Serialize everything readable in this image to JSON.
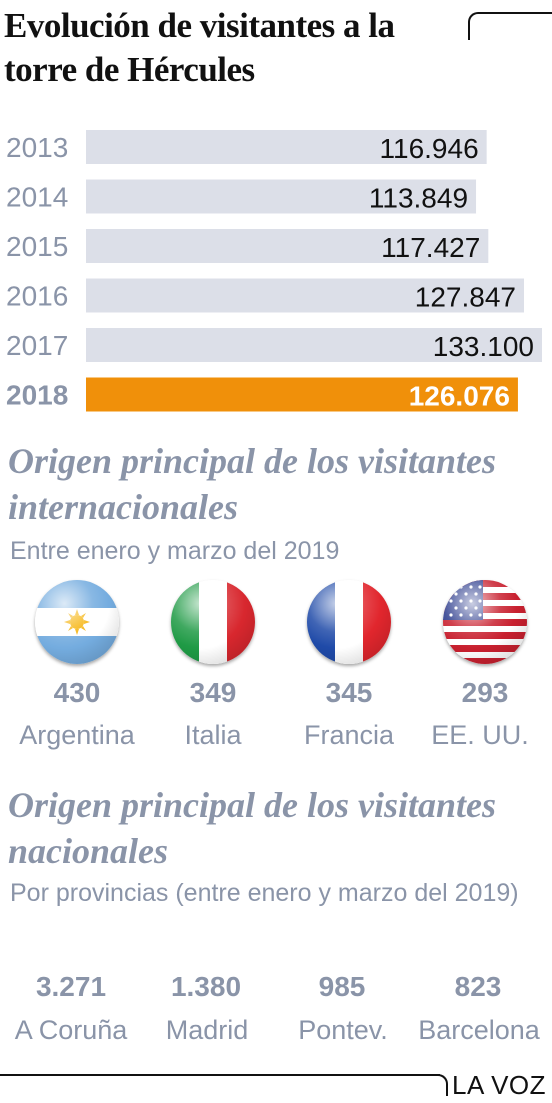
{
  "title": "Evolución de visitantes a la torre de Hércules",
  "chart_data": {
    "type": "bar",
    "orientation": "horizontal",
    "categories": [
      "2013",
      "2014",
      "2015",
      "2016",
      "2017",
      "2018"
    ],
    "values": [
      116946,
      113849,
      117427,
      127847,
      133100,
      126076
    ],
    "value_labels": [
      "116.946",
      "113.849",
      "117.427",
      "127.847",
      "133.100",
      "126.076"
    ],
    "highlight": "2018",
    "colors": {
      "bar": "#dcdfe8",
      "highlight": "#f0900a",
      "year_text": "#8a94a8",
      "value_text": "#111111"
    }
  },
  "international": {
    "title": "Origen principal de los visitantes internacionales",
    "subtitle": "Entre enero y marzo del 2019",
    "items": [
      {
        "value": "430",
        "label": "Argentina",
        "icon": "argentina-flag-icon"
      },
      {
        "value": "349",
        "label": "Italia",
        "icon": "italy-flag-icon"
      },
      {
        "value": "345",
        "label": "Francia",
        "icon": "france-flag-icon"
      },
      {
        "value": "293",
        "label": "EE. UU.",
        "icon": "usa-flag-icon"
      }
    ]
  },
  "national": {
    "title": "Origen principal de los visitantes nacionales",
    "subtitle": "Por provincias (entre enero y marzo del 2019)",
    "items": [
      {
        "value": "3.271",
        "label": "A Coruña"
      },
      {
        "value": "1.380",
        "label": "Madrid"
      },
      {
        "value": "985",
        "label": "Pontev."
      },
      {
        "value": "823",
        "label": "Barcelona"
      }
    ]
  },
  "footer": {
    "brand": "LA VOZ"
  }
}
